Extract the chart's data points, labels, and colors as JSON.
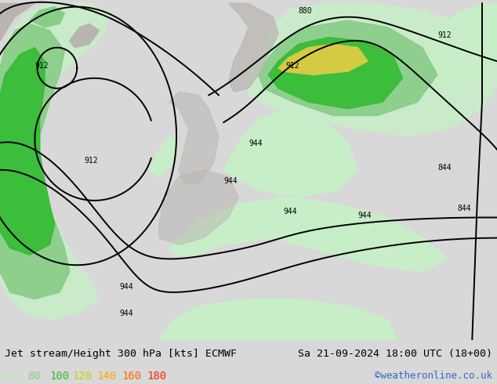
{
  "title_left": "Jet stream/Height 300 hPa [kts] ECMWF",
  "title_right": "Sa 21-09-2024 18:00 UTC (18+00)",
  "credit": "©weatheronline.co.uk",
  "legend_values": [
    60,
    80,
    100,
    120,
    140,
    160,
    180
  ],
  "legend_colors": [
    "#b8e8b8",
    "#88cc88",
    "#33bb33",
    "#cccc00",
    "#ffaa00",
    "#ff6600",
    "#ff2200"
  ],
  "bg_color": "#d8d8d8",
  "title_fontsize": 9.5,
  "credit_fontsize": 9,
  "legend_fontsize": 10,
  "figsize": [
    6.34,
    4.9
  ],
  "dpi": 100,
  "map_ocean": "#e8e8e8",
  "map_land": "#d0ccc8",
  "green_light": "#c8eec8",
  "green_mid": "#88cc88",
  "green_dark": "#33bb33",
  "green_yellow": "#ddcc44",
  "contour_color": "#000000",
  "land_gray": "#b8b4b0"
}
